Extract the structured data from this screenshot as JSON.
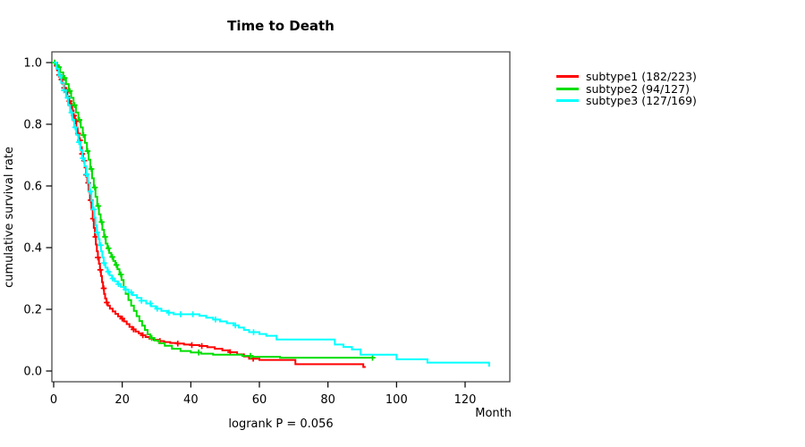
{
  "header": {
    "title": "Time to Death"
  },
  "annotation": {
    "logrank": "logrank P = 0.056"
  },
  "axes": {
    "x_label": "Month",
    "y_label": "cumulative survival rate"
  },
  "legend": {
    "items": [
      {
        "label": "subtype1 (182/223)",
        "color": "#ff0000"
      },
      {
        "label": "subtype2 (94/127)",
        "color": "#00dd00"
      },
      {
        "label": "subtype3 (127/169)",
        "color": "#00ffff"
      }
    ]
  },
  "chart_data": {
    "type": "line",
    "chart_kind": "kaplan-meier-step",
    "title": "Time to Death",
    "xlabel": "Month",
    "ylabel": "cumulative survival rate",
    "annotation": "logrank P = 0.056",
    "xlim": [
      0,
      130
    ],
    "ylim": [
      0.0,
      1.0
    ],
    "x_ticks": [
      0,
      20,
      40,
      60,
      80,
      100,
      120
    ],
    "y_tick_labels": [
      "0.0",
      "0.2",
      "0.4",
      "0.6",
      "0.8",
      "1.0"
    ],
    "grid": false,
    "legend_position": "right-outside",
    "frame_color": "#3c3c3c",
    "tick_color": "#000000",
    "series": [
      {
        "name": "subtype1 (182/223)",
        "subtype": "subtype1",
        "events": 182,
        "n": 223,
        "color": "#ff0000",
        "end_month": 91,
        "steps": [
          [
            0.5,
            0.99
          ],
          [
            1,
            0.975
          ],
          [
            1.5,
            0.96
          ],
          [
            2,
            0.945
          ],
          [
            2.5,
            0.932
          ],
          [
            3,
            0.918
          ],
          [
            3.5,
            0.905
          ],
          [
            4,
            0.89
          ],
          [
            4.5,
            0.875
          ],
          [
            5,
            0.86
          ],
          [
            5.4,
            0.845
          ],
          [
            5.8,
            0.828
          ],
          [
            6.2,
            0.81
          ],
          [
            6.6,
            0.79
          ],
          [
            7,
            0.77
          ],
          [
            7.4,
            0.748
          ],
          [
            7.8,
            0.726
          ],
          [
            8.2,
            0.704
          ],
          [
            8.6,
            0.682
          ],
          [
            9,
            0.66
          ],
          [
            9.4,
            0.636
          ],
          [
            9.8,
            0.61
          ],
          [
            10.2,
            0.582
          ],
          [
            10.6,
            0.554
          ],
          [
            11,
            0.524
          ],
          [
            11.4,
            0.494
          ],
          [
            11.7,
            0.464
          ],
          [
            12,
            0.435
          ],
          [
            12.3,
            0.41
          ],
          [
            12.6,
            0.388
          ],
          [
            12.9,
            0.368
          ],
          [
            13.2,
            0.348
          ],
          [
            13.5,
            0.328
          ],
          [
            13.8,
            0.308
          ],
          [
            14.1,
            0.288
          ],
          [
            14.4,
            0.268
          ],
          [
            14.7,
            0.25
          ],
          [
            15,
            0.235
          ],
          [
            15.4,
            0.222
          ],
          [
            15.8,
            0.212
          ],
          [
            16.4,
            0.202
          ],
          [
            17.2,
            0.193
          ],
          [
            18,
            0.185
          ],
          [
            18.8,
            0.177
          ],
          [
            19.6,
            0.17
          ],
          [
            20.5,
            0.161
          ],
          [
            21.3,
            0.152
          ],
          [
            22.1,
            0.143
          ],
          [
            23,
            0.135
          ],
          [
            23.9,
            0.128
          ],
          [
            24.8,
            0.122
          ],
          [
            25.8,
            0.116
          ],
          [
            26.8,
            0.11
          ],
          [
            27.9,
            0.105
          ],
          [
            29.2,
            0.101
          ],
          [
            30.6,
            0.097
          ],
          [
            32.2,
            0.094
          ],
          [
            34,
            0.091
          ],
          [
            36,
            0.089
          ],
          [
            38,
            0.086
          ],
          [
            40.2,
            0.084
          ],
          [
            42.5,
            0.081
          ],
          [
            44.8,
            0.077
          ],
          [
            47,
            0.072
          ],
          [
            49.2,
            0.067
          ],
          [
            51.4,
            0.061
          ],
          [
            53.5,
            0.054
          ],
          [
            55.5,
            0.047
          ],
          [
            57,
            0.04
          ],
          [
            60,
            0.036
          ],
          [
            70.5,
            0.022
          ],
          [
            90.3,
            0.013
          ]
        ],
        "censor_months": [
          0.9,
          1.6,
          2.3,
          3.1,
          3.9,
          4.6,
          5.2,
          5.9,
          6.5,
          7.1,
          7.7,
          8.3,
          8.9,
          9.5,
          10.1,
          10.8,
          11.5,
          12.2,
          12.9,
          13.6,
          14.6,
          15.5,
          20,
          23.3,
          26,
          31,
          36.2,
          40.3,
          43.2,
          51.5,
          58.2
        ]
      },
      {
        "name": "subtype2 (94/127)",
        "subtype": "subtype2",
        "events": 94,
        "n": 127,
        "color": "#00dd00",
        "end_month": 93,
        "steps": [
          [
            1,
            0.985
          ],
          [
            1.9,
            0.968
          ],
          [
            2.8,
            0.95
          ],
          [
            3.6,
            0.93
          ],
          [
            4.4,
            0.908
          ],
          [
            5.1,
            0.886
          ],
          [
            5.8,
            0.862
          ],
          [
            6.5,
            0.838
          ],
          [
            7.2,
            0.814
          ],
          [
            7.9,
            0.79
          ],
          [
            8.5,
            0.765
          ],
          [
            9.1,
            0.74
          ],
          [
            9.7,
            0.713
          ],
          [
            10.2,
            0.685
          ],
          [
            10.7,
            0.655
          ],
          [
            11.2,
            0.625
          ],
          [
            11.7,
            0.595
          ],
          [
            12.2,
            0.565
          ],
          [
            12.7,
            0.535
          ],
          [
            13.2,
            0.508
          ],
          [
            13.7,
            0.483
          ],
          [
            14.2,
            0.458
          ],
          [
            14.7,
            0.435
          ],
          [
            15.2,
            0.413
          ],
          [
            15.7,
            0.398
          ],
          [
            16.2,
            0.383
          ],
          [
            16.8,
            0.37
          ],
          [
            17.4,
            0.357
          ],
          [
            18,
            0.344
          ],
          [
            18.6,
            0.33
          ],
          [
            19.2,
            0.313
          ],
          [
            19.8,
            0.295
          ],
          [
            20.4,
            0.272
          ],
          [
            21,
            0.25
          ],
          [
            21.8,
            0.23
          ],
          [
            22.6,
            0.212
          ],
          [
            23.4,
            0.195
          ],
          [
            24.2,
            0.178
          ],
          [
            25,
            0.162
          ],
          [
            25.8,
            0.147
          ],
          [
            26.6,
            0.133
          ],
          [
            27.4,
            0.119
          ],
          [
            28.2,
            0.107
          ],
          [
            29.4,
            0.099
          ],
          [
            30.8,
            0.09
          ],
          [
            32.4,
            0.082
          ],
          [
            34.5,
            0.072
          ],
          [
            37,
            0.065
          ],
          [
            40,
            0.06
          ],
          [
            43,
            0.056
          ],
          [
            46.5,
            0.053
          ],
          [
            55,
            0.049
          ],
          [
            58,
            0.046
          ],
          [
            66,
            0.043
          ]
        ],
        "censor_months": [
          0.3,
          1.5,
          3.2,
          4.7,
          6.1,
          7.5,
          8.7,
          9.9,
          11,
          12,
          13,
          14,
          15,
          16,
          17.1,
          18.3,
          19.6,
          28.6,
          42.3,
          57.4,
          93
        ]
      },
      {
        "name": "subtype3 (127/169)",
        "subtype": "subtype3",
        "events": 127,
        "n": 169,
        "color": "#00ffff",
        "end_month": 127,
        "steps": [
          [
            0.8,
            0.98
          ],
          [
            1.5,
            0.958
          ],
          [
            2.2,
            0.934
          ],
          [
            2.9,
            0.91
          ],
          [
            3.6,
            0.886
          ],
          [
            4.2,
            0.862
          ],
          [
            4.8,
            0.838
          ],
          [
            5.4,
            0.814
          ],
          [
            6,
            0.79
          ],
          [
            6.6,
            0.766
          ],
          [
            7.2,
            0.742
          ],
          [
            7.8,
            0.716
          ],
          [
            8.4,
            0.69
          ],
          [
            9,
            0.664
          ],
          [
            9.5,
            0.638
          ],
          [
            10,
            0.61
          ],
          [
            10.5,
            0.582
          ],
          [
            11,
            0.552
          ],
          [
            11.4,
            0.524
          ],
          [
            11.8,
            0.497
          ],
          [
            12.2,
            0.472
          ],
          [
            12.6,
            0.449
          ],
          [
            13,
            0.428
          ],
          [
            13.4,
            0.408
          ],
          [
            13.8,
            0.388
          ],
          [
            14.2,
            0.368
          ],
          [
            14.6,
            0.35
          ],
          [
            15.1,
            0.335
          ],
          [
            15.7,
            0.322
          ],
          [
            16.3,
            0.31
          ],
          [
            17,
            0.3
          ],
          [
            17.8,
            0.291
          ],
          [
            18.7,
            0.282
          ],
          [
            19.6,
            0.273
          ],
          [
            20.6,
            0.264
          ],
          [
            21.8,
            0.255
          ],
          [
            23,
            0.246
          ],
          [
            24.3,
            0.237
          ],
          [
            25.6,
            0.228
          ],
          [
            27,
            0.219
          ],
          [
            28.4,
            0.21
          ],
          [
            29.8,
            0.202
          ],
          [
            31.4,
            0.195
          ],
          [
            33.2,
            0.189
          ],
          [
            35,
            0.184
          ],
          [
            42.5,
            0.179
          ],
          [
            44.5,
            0.173
          ],
          [
            46.5,
            0.167
          ],
          [
            48.5,
            0.161
          ],
          [
            50.5,
            0.155
          ],
          [
            52.5,
            0.148
          ],
          [
            54,
            0.141
          ],
          [
            55.5,
            0.133
          ],
          [
            57,
            0.126
          ],
          [
            60,
            0.12
          ],
          [
            62,
            0.114
          ],
          [
            65,
            0.102
          ],
          [
            82,
            0.086
          ],
          [
            84.5,
            0.078
          ],
          [
            87,
            0.07
          ],
          [
            89.5,
            0.053
          ],
          [
            100,
            0.038
          ],
          [
            109,
            0.027
          ],
          [
            127,
            0.014
          ]
        ],
        "censor_months": [
          1.8,
          3,
          4.1,
          5.2,
          6.3,
          7.4,
          8.5,
          9.6,
          10.7,
          11.7,
          12.7,
          13.7,
          14.7,
          15.9,
          17.2,
          18.9,
          21,
          22.6,
          25.6,
          28.2,
          30.2,
          33.6,
          37,
          40.6,
          47.2,
          53,
          58.3
        ]
      }
    ]
  }
}
